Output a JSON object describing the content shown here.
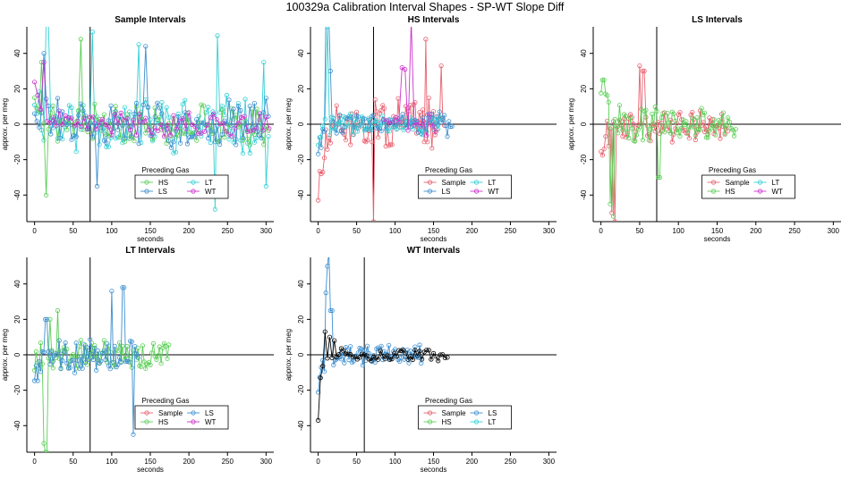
{
  "page_title": "100329a   Calibration Interval Shapes - SP-WT Slope Diff",
  "colors": {
    "Sample": "#e8616f",
    "HS": "#5bcf56",
    "LS": "#3d8fd0",
    "LT": "#35d0d5",
    "WT": "#cc33cc",
    "Zero": "#000000"
  },
  "chart_data": [
    {
      "type": "line",
      "title": "Sample Intervals",
      "xlabel": "seconds",
      "ylabel": "approx. per meg",
      "xlim": [
        -10,
        310
      ],
      "ylim": [
        -55,
        55
      ],
      "xticks": [
        0,
        50,
        100,
        150,
        200,
        250,
        300
      ],
      "yticks": [
        -40,
        -20,
        0,
        20,
        40
      ],
      "vline": 72,
      "hline": 0,
      "legend": {
        "title": "Preceding Gas",
        "entries": [
          "HS",
          "LS",
          "LT",
          "WT"
        ],
        "columns": [
          [
            "HS",
            "LS"
          ],
          [
            "LT",
            "WT"
          ]
        ]
      },
      "series": [
        {
          "name": "LT",
          "x_start": 0,
          "x_end": 305,
          "step": 3,
          "seed": 11,
          "start": 20,
          "decay": 8,
          "noise": 14,
          "spikes": [
            [
              14,
              60
            ],
            [
              17,
              58
            ],
            [
              75,
              52
            ],
            [
              135,
              45
            ],
            [
              238,
              50
            ],
            [
              298,
              35
            ],
            [
              301,
              -35
            ],
            [
              235,
              -48
            ]
          ]
        },
        {
          "name": "HS",
          "x_start": 0,
          "x_end": 305,
          "step": 3,
          "seed": 21,
          "start": 22,
          "decay": 8,
          "noise": 10,
          "spikes": [
            [
              15,
              -40
            ],
            [
              60,
              48
            ],
            [
              8,
              35
            ]
          ]
        },
        {
          "name": "LS",
          "x_start": 0,
          "x_end": 305,
          "step": 3,
          "seed": 31,
          "start": 15,
          "decay": 8,
          "noise": 12,
          "spikes": [
            [
              12,
              40
            ],
            [
              145,
              44
            ],
            [
              80,
              -35
            ]
          ]
        },
        {
          "name": "WT",
          "x_start": 0,
          "x_end": 305,
          "step": 4,
          "seed": 41,
          "start": 25,
          "decay": 6,
          "noise": 6,
          "spikes": [
            [
              12,
              35
            ]
          ]
        }
      ]
    },
    {
      "type": "line",
      "title": "HS Intervals",
      "xlabel": "seconds",
      "ylabel": "approx. per meg",
      "xlim": [
        -10,
        310
      ],
      "ylim": [
        -55,
        55
      ],
      "xticks": [
        0,
        50,
        100,
        150,
        200,
        250,
        300
      ],
      "yticks": [
        -40,
        -20,
        0,
        20,
        40
      ],
      "vline": 72,
      "hline": 0,
      "legend": {
        "title": "Preceding Gas",
        "entries": [
          "Sample",
          "LS",
          "LT",
          "WT"
        ],
        "columns": [
          [
            "Sample",
            "LS"
          ],
          [
            "LT",
            "WT"
          ]
        ]
      },
      "series": [
        {
          "name": "Sample",
          "x_start": 0,
          "x_end": 165,
          "step": 2,
          "seed": 51,
          "start": -40,
          "decay": 10,
          "noise": 12,
          "spikes": [
            [
              72,
              -55
            ],
            [
              140,
              48
            ],
            [
              160,
              33
            ]
          ]
        },
        {
          "name": "LS",
          "x_start": 0,
          "x_end": 175,
          "step": 2,
          "seed": 61,
          "start": -15,
          "decay": 5,
          "noise": 6,
          "spikes": [
            [
              10,
              60
            ],
            [
              13,
              58
            ],
            [
              16,
              30
            ]
          ]
        },
        {
          "name": "LT",
          "x_start": 0,
          "x_end": 160,
          "step": 3,
          "seed": 71,
          "start": -10,
          "decay": 6,
          "noise": 5,
          "spikes": [
            [
              12,
              55
            ]
          ]
        },
        {
          "name": "WT",
          "x_start": 85,
          "x_end": 155,
          "step": 4,
          "seed": 81,
          "start": 5,
          "decay": 20,
          "noise": 6,
          "spikes": [
            [
              110,
              32
            ],
            [
              113,
              31
            ],
            [
              120,
              58
            ]
          ]
        }
      ]
    },
    {
      "type": "line",
      "title": "LS Intervals",
      "xlabel": "seconds",
      "ylabel": "approx. per meg",
      "xlim": [
        -10,
        310
      ],
      "ylim": [
        -55,
        55
      ],
      "xticks": [
        0,
        50,
        100,
        150,
        200,
        250,
        300
      ],
      "yticks": [
        -40,
        -20,
        0,
        20,
        40
      ],
      "vline": 72,
      "hline": 0,
      "legend": {
        "title": "Preceding Gas",
        "entries": [
          "Sample",
          "HS",
          "LT",
          "WT"
        ],
        "columns": [
          [
            "Sample",
            "HS"
          ],
          [
            "LT",
            "WT"
          ]
        ]
      },
      "series": [
        {
          "name": "Sample",
          "x_start": 0,
          "x_end": 165,
          "step": 2,
          "seed": 91,
          "start": -12,
          "decay": 8,
          "noise": 8,
          "spikes": [
            [
              14,
              -50
            ],
            [
              18,
              -55
            ],
            [
              50,
              33
            ],
            [
              55,
              30
            ]
          ]
        },
        {
          "name": "HS",
          "x_start": 0,
          "x_end": 175,
          "step": 2,
          "seed": 101,
          "start": 22,
          "decay": 10,
          "noise": 9,
          "spikes": [
            [
              12,
              -45
            ],
            [
              16,
              -52
            ],
            [
              75,
              -30
            ],
            [
              3,
              25
            ]
          ]
        }
      ]
    },
    {
      "type": "line",
      "title": "LT Intervals",
      "xlabel": "seconds",
      "ylabel": "approx. per meg",
      "xlim": [
        -10,
        310
      ],
      "ylim": [
        -55,
        55
      ],
      "xticks": [
        0,
        50,
        100,
        150,
        200,
        250,
        300
      ],
      "yticks": [
        -40,
        -20,
        0,
        20,
        40
      ],
      "vline": 72,
      "hline": 0,
      "legend": {
        "title": "Preceding Gas",
        "entries": [
          "Sample",
          "LS",
          "HS",
          "WT"
        ],
        "columns": [
          [
            "Sample",
            "HS"
          ],
          [
            "LS",
            "WT"
          ]
        ]
      },
      "series": [
        {
          "name": "HS",
          "x_start": 0,
          "x_end": 175,
          "step": 2,
          "seed": 111,
          "start": -5,
          "decay": 8,
          "noise": 7,
          "spikes": [
            [
              12,
              -50
            ],
            [
              15,
              -55
            ],
            [
              30,
              25
            ],
            [
              20,
              20
            ]
          ]
        },
        {
          "name": "LS",
          "x_start": 0,
          "x_end": 135,
          "step": 2,
          "seed": 121,
          "start": -10,
          "decay": 6,
          "noise": 8,
          "spikes": [
            [
              15,
              20
            ],
            [
              100,
              36
            ],
            [
              115,
              38
            ],
            [
              128,
              -45
            ]
          ]
        }
      ]
    },
    {
      "type": "line",
      "title": "WT Intervals",
      "xlabel": "seconds",
      "ylabel": "approx. per meg",
      "xlim": [
        -10,
        310
      ],
      "ylim": [
        -55,
        55
      ],
      "xticks": [
        0,
        50,
        100,
        150,
        200,
        250,
        300
      ],
      "yticks": [
        -40,
        -20,
        0,
        20,
        40
      ],
      "vline": 60,
      "hline": 0,
      "legend": {
        "title": "Preceding Gas",
        "entries": [
          "Sample",
          "LS",
          "HS",
          "LT"
        ],
        "columns": [
          [
            "Sample",
            "HS"
          ],
          [
            "LS",
            "LT"
          ]
        ]
      },
      "series": [
        {
          "name": "LS",
          "x_start": 0,
          "x_end": 135,
          "step": 2,
          "seed": 131,
          "start": -18,
          "decay": 6,
          "noise": 5,
          "spikes": [
            [
              10,
              35
            ],
            [
              12,
              50
            ],
            [
              15,
              58
            ],
            [
              17,
              25
            ]
          ]
        },
        {
          "name": "Zero",
          "x_start": 0,
          "x_end": 168,
          "step": 3,
          "seed": 141,
          "start": -35,
          "decay": 3,
          "noise": 3,
          "spikes": [
            [
              10,
              13
            ],
            [
              15,
              10
            ],
            [
              20,
              8
            ]
          ]
        }
      ]
    }
  ]
}
